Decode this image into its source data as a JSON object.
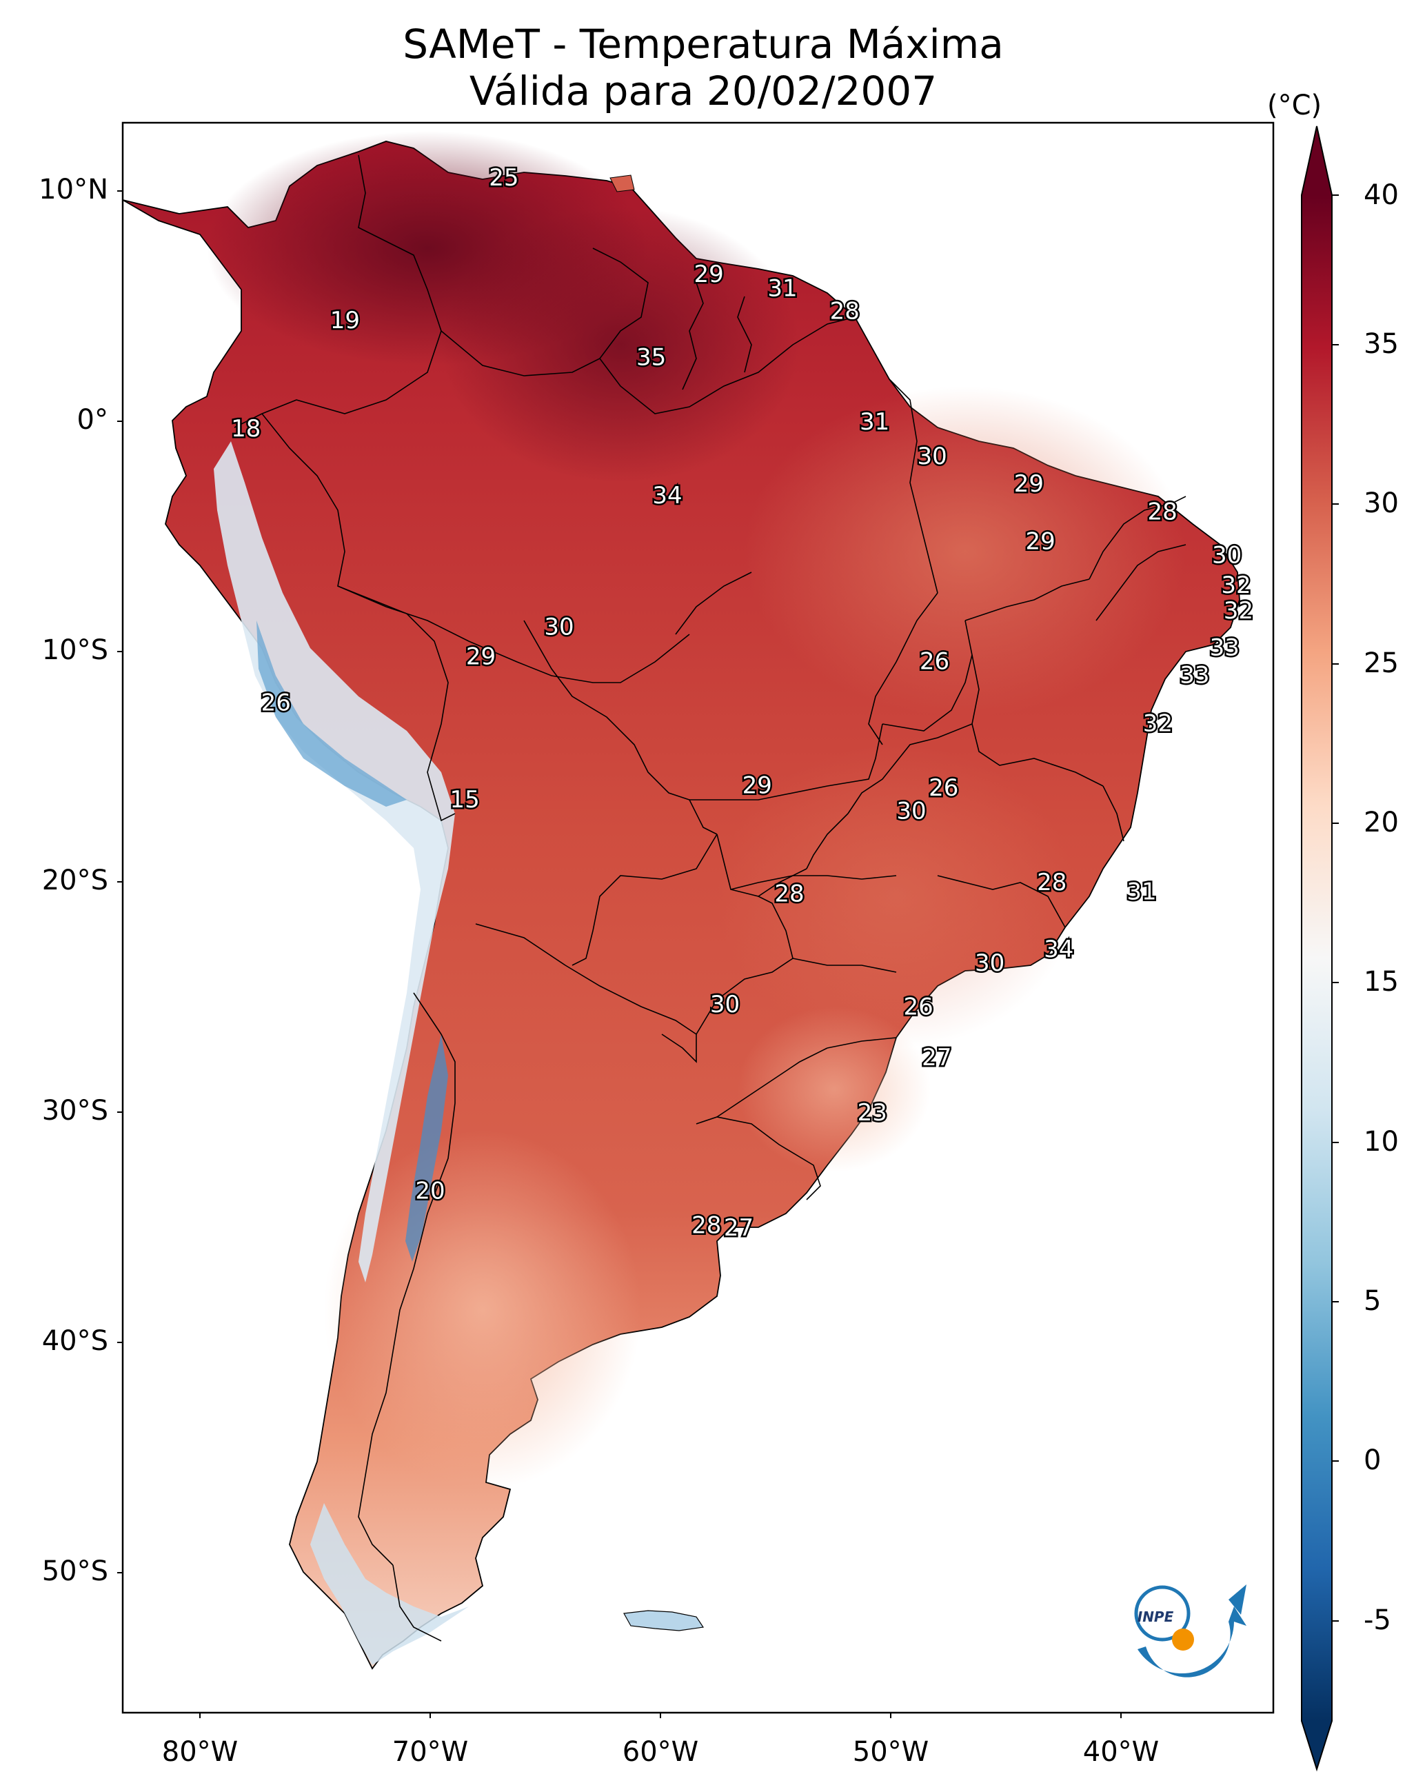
{
  "title": {
    "line1": "SAMeT - Temperatura Máxima",
    "line2": "Válida para 20/02/2007"
  },
  "colorbar": {
    "unit": "(°C)",
    "ticks": [
      "40",
      "35",
      "30",
      "25",
      "20",
      "15",
      "10",
      "5",
      "0",
      "-5"
    ],
    "range": [
      -5,
      40
    ],
    "colors": [
      "#053061",
      "#2166ac",
      "#4393c3",
      "#92c5de",
      "#d1e5f0",
      "#f7f7f7",
      "#fddbc7",
      "#f4a582",
      "#d6604d",
      "#b2182b",
      "#67001f"
    ]
  },
  "axes": {
    "lat_labels": [
      "10°N",
      "0°",
      "10°S",
      "20°S",
      "30°S",
      "40°S",
      "50°S"
    ],
    "lon_labels": [
      "80°W",
      "70°W",
      "60°W",
      "50°W",
      "40°W"
    ]
  },
  "logo": {
    "text": "INPE",
    "colors": {
      "primary": "#1f77b4",
      "accent": "#f39200"
    }
  },
  "labels": [
    {
      "lon": -66.8,
      "lat": 10.6,
      "t": "25"
    },
    {
      "lon": -57.9,
      "lat": 6.4,
      "t": "29"
    },
    {
      "lon": -54.7,
      "lat": 5.8,
      "t": "31"
    },
    {
      "lon": -52.0,
      "lat": 4.8,
      "t": "28"
    },
    {
      "lon": -73.7,
      "lat": 4.4,
      "t": "19"
    },
    {
      "lon": -60.4,
      "lat": 2.8,
      "t": "35"
    },
    {
      "lon": -78.0,
      "lat": -0.3,
      "t": "18"
    },
    {
      "lon": -50.7,
      "lat": 0.0,
      "t": "31"
    },
    {
      "lon": -48.2,
      "lat": -1.5,
      "t": "30"
    },
    {
      "lon": -44.0,
      "lat": -2.7,
      "t": "29"
    },
    {
      "lon": -59.7,
      "lat": -3.2,
      "t": "34"
    },
    {
      "lon": -38.2,
      "lat": -3.9,
      "t": "28"
    },
    {
      "lon": -43.5,
      "lat": -5.2,
      "t": "29"
    },
    {
      "lon": -35.4,
      "lat": -5.8,
      "t": "30"
    },
    {
      "lon": -35.0,
      "lat": -7.1,
      "t": "32"
    },
    {
      "lon": -34.9,
      "lat": -8.2,
      "t": "32"
    },
    {
      "lon": -64.4,
      "lat": -8.9,
      "t": "30"
    },
    {
      "lon": -35.5,
      "lat": -9.8,
      "t": "33"
    },
    {
      "lon": -67.8,
      "lat": -10.2,
      "t": "29"
    },
    {
      "lon": -48.1,
      "lat": -10.4,
      "t": "26"
    },
    {
      "lon": -36.8,
      "lat": -11.0,
      "t": "33"
    },
    {
      "lon": -76.7,
      "lat": -12.2,
      "t": "26"
    },
    {
      "lon": -38.4,
      "lat": -13.1,
      "t": "32"
    },
    {
      "lon": -55.8,
      "lat": -15.8,
      "t": "29"
    },
    {
      "lon": -47.7,
      "lat": -15.9,
      "t": "26"
    },
    {
      "lon": -68.5,
      "lat": -16.4,
      "t": "15"
    },
    {
      "lon": -49.1,
      "lat": -16.9,
      "t": "30"
    },
    {
      "lon": -43.0,
      "lat": -20.0,
      "t": "28"
    },
    {
      "lon": -39.1,
      "lat": -20.4,
      "t": "31"
    },
    {
      "lon": -54.4,
      "lat": -20.5,
      "t": "28"
    },
    {
      "lon": -42.7,
      "lat": -22.9,
      "t": "34"
    },
    {
      "lon": -45.7,
      "lat": -23.5,
      "t": "30"
    },
    {
      "lon": -57.2,
      "lat": -25.3,
      "t": "30"
    },
    {
      "lon": -48.8,
      "lat": -25.4,
      "t": "26"
    },
    {
      "lon": -48.0,
      "lat": -27.6,
      "t": "27"
    },
    {
      "lon": -50.8,
      "lat": -30.0,
      "t": "23"
    },
    {
      "lon": -70.0,
      "lat": -33.4,
      "t": "20"
    },
    {
      "lon": -58.0,
      "lat": -34.9,
      "t": "28"
    },
    {
      "lon": -56.6,
      "lat": -35.0,
      "t": "27"
    }
  ]
}
